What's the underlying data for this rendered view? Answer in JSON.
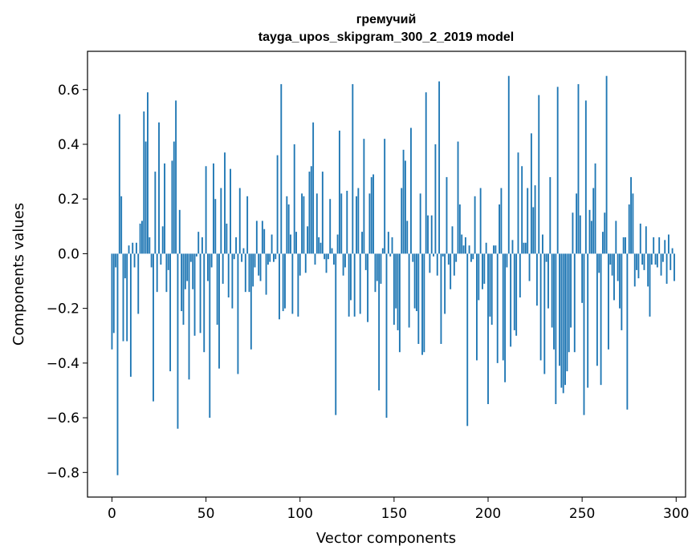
{
  "chart_data": {
    "type": "bar",
    "title": "гремучий",
    "subtitle": "tayga_upos_skipgram_300_2_2019 model",
    "xlabel": "Vector components",
    "ylabel": "Components values",
    "xlim": [
      -13,
      305
    ],
    "ylim": [
      -0.89,
      0.74
    ],
    "xticks": [
      0,
      50,
      100,
      150,
      200,
      250,
      300
    ],
    "xtick_labels": [
      "0",
      "50",
      "100",
      "150",
      "200",
      "250",
      "300"
    ],
    "yticks": [
      -0.8,
      -0.6,
      -0.4,
      -0.2,
      0.0,
      0.2,
      0.4,
      0.6
    ],
    "ytick_labels": [
      "−0.8",
      "−0.6",
      "−0.4",
      "−0.2",
      "0.0",
      "0.2",
      "0.4",
      "0.6"
    ],
    "bar_color": "#1f77b4",
    "values": [
      -0.35,
      -0.29,
      -0.05,
      -0.81,
      0.51,
      0.21,
      -0.32,
      -0.09,
      -0.32,
      0.03,
      -0.45,
      0.04,
      -0.05,
      0.04,
      -0.22,
      0.11,
      0.12,
      0.52,
      0.41,
      0.59,
      0.06,
      -0.05,
      -0.54,
      0.3,
      -0.14,
      0.48,
      -0.04,
      0.1,
      0.33,
      -0.14,
      -0.06,
      -0.43,
      0.34,
      0.41,
      0.56,
      -0.64,
      0.16,
      -0.21,
      -0.26,
      -0.13,
      -0.1,
      -0.46,
      -0.03,
      -0.13,
      -0.3,
      -0.01,
      0.08,
      -0.29,
      0.06,
      -0.36,
      0.32,
      -0.1,
      -0.6,
      -0.05,
      0.33,
      0.2,
      -0.26,
      -0.42,
      0.24,
      -0.11,
      0.37,
      0.11,
      -0.16,
      0.31,
      -0.2,
      -0.02,
      0.06,
      -0.44,
      0.24,
      -0.03,
      0.02,
      -0.14,
      0.21,
      -0.14,
      -0.35,
      -0.12,
      -0.05,
      0.12,
      -0.08,
      -0.1,
      0.12,
      0.09,
      -0.15,
      -0.04,
      -0.03,
      0.07,
      -0.03,
      -0.02,
      0.36,
      -0.24,
      0.62,
      -0.21,
      -0.2,
      0.21,
      0.18,
      0.07,
      -0.22,
      0.4,
      0.08,
      -0.23,
      -0.08,
      0.22,
      0.21,
      -0.07,
      0.1,
      0.3,
      0.32,
      0.48,
      -0.04,
      0.22,
      0.06,
      0.04,
      0.3,
      -0.02,
      -0.07,
      -0.02,
      0.2,
      0.02,
      -0.04,
      -0.59,
      0.07,
      0.45,
      0.22,
      -0.08,
      -0.05,
      0.23,
      -0.23,
      -0.17,
      0.62,
      -0.23,
      0.21,
      0.24,
      -0.22,
      0.08,
      0.42,
      -0.06,
      -0.25,
      0.22,
      0.28,
      0.29,
      -0.14,
      -0.1,
      -0.5,
      -0.11,
      0.02,
      0.42,
      -0.6,
      0.08,
      -0.01,
      0.06,
      -0.26,
      -0.2,
      -0.28,
      -0.36,
      0.24,
      0.38,
      0.34,
      0.12,
      -0.27,
      0.46,
      -0.03,
      -0.2,
      -0.21,
      -0.33,
      0.22,
      -0.37,
      -0.36,
      0.59,
      0.14,
      -0.07,
      0.14,
      -0.01,
      0.4,
      -0.08,
      0.63,
      -0.33,
      -0.01,
      -0.22,
      0.28,
      -0.04,
      -0.13,
      0.1,
      -0.08,
      -0.03,
      0.41,
      0.18,
      0.07,
      0.03,
      0.06,
      -0.63,
      0.03,
      -0.03,
      -0.02,
      0.21,
      -0.39,
      -0.17,
      0.24,
      -0.13,
      -0.11,
      0.04,
      -0.55,
      -0.23,
      -0.26,
      0.03,
      0.03,
      -0.4,
      0.18,
      0.24,
      -0.39,
      -0.47,
      -0.05,
      0.65,
      -0.34,
      0.05,
      -0.28,
      -0.3,
      0.37,
      -0.16,
      0.32,
      0.04,
      0.04,
      0.24,
      -0.1,
      0.44,
      0.17,
      0.25,
      -0.19,
      0.58,
      -0.39,
      0.07,
      -0.44,
      -0.03,
      -0.2,
      0.28,
      -0.27,
      -0.35,
      -0.55,
      0.61,
      -0.41,
      -0.49,
      -0.51,
      -0.48,
      -0.43,
      -0.36,
      -0.27,
      0.15,
      -0.36,
      0.22,
      0.62,
      0.14,
      -0.18,
      -0.59,
      0.56,
      -0.49,
      0.16,
      0.12,
      0.24,
      0.33,
      -0.41,
      -0.07,
      -0.48,
      0.08,
      0.15,
      0.65,
      -0.35,
      -0.04,
      -0.08,
      -0.17,
      0.12,
      -0.1,
      -0.2,
      -0.28,
      0.06,
      0.06,
      -0.57,
      0.18,
      0.28,
      0.22,
      -0.12,
      -0.06,
      -0.09,
      0.11,
      -0.04,
      -0.06,
      0.1,
      -0.12,
      -0.23,
      -0.04,
      0.06,
      -0.04,
      -0.05,
      0.06,
      -0.08,
      -0.03,
      0.05,
      -0.11,
      0.07,
      -0.06,
      0.02,
      -0.1
    ]
  }
}
